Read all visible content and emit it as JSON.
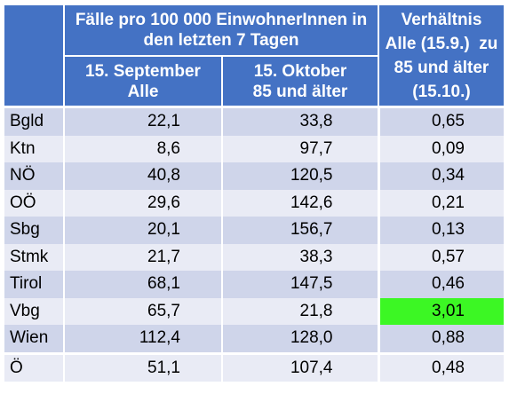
{
  "header": {
    "group_title_line1": "Fälle pro 100 000 EinwohnerInnen in",
    "group_title_line2": "den letzten 7 Tagen",
    "col2_line1": "15. September",
    "col2_line2": "Alle",
    "col3_line1": "15. Oktober",
    "col3_line2": "85 und älter",
    "ratio_line1": "Verhältnis",
    "ratio_line2": "Alle (15.9.)  zu",
    "ratio_line3": "85 und älter",
    "ratio_line4": "(15.10.)"
  },
  "rows": [
    {
      "region": "Bgld",
      "all_sep": "22,1",
      "age85_oct": "33,8",
      "ratio": "0,65"
    },
    {
      "region": "Ktn",
      "all_sep": "8,6",
      "age85_oct": "97,7",
      "ratio": "0,09"
    },
    {
      "region": "NÖ",
      "all_sep": "40,8",
      "age85_oct": "120,5",
      "ratio": "0,34"
    },
    {
      "region": "OÖ",
      "all_sep": "29,6",
      "age85_oct": "142,6",
      "ratio": "0,21"
    },
    {
      "region": "Sbg",
      "all_sep": "20,1",
      "age85_oct": "156,7",
      "ratio": "0,13"
    },
    {
      "region": "Stmk",
      "all_sep": "21,7",
      "age85_oct": "38,3",
      "ratio": "0,57"
    },
    {
      "region": "Tirol",
      "all_sep": "68,1",
      "age85_oct": "147,5",
      "ratio": "0,46"
    },
    {
      "region": "Vbg",
      "all_sep": "65,7",
      "age85_oct": "21,8",
      "ratio": "3,01"
    },
    {
      "region": "Wien",
      "all_sep": "112,4",
      "age85_oct": "128,0",
      "ratio": "0,88"
    },
    {
      "region": "Ö",
      "all_sep": "51,1",
      "age85_oct": "107,4",
      "ratio": "0,48"
    }
  ],
  "colors": {
    "header_blue": "#4472c4",
    "row_dark": "#cfd5ea",
    "row_light": "#e9ebf5",
    "highlight_green": "#3cf724"
  }
}
